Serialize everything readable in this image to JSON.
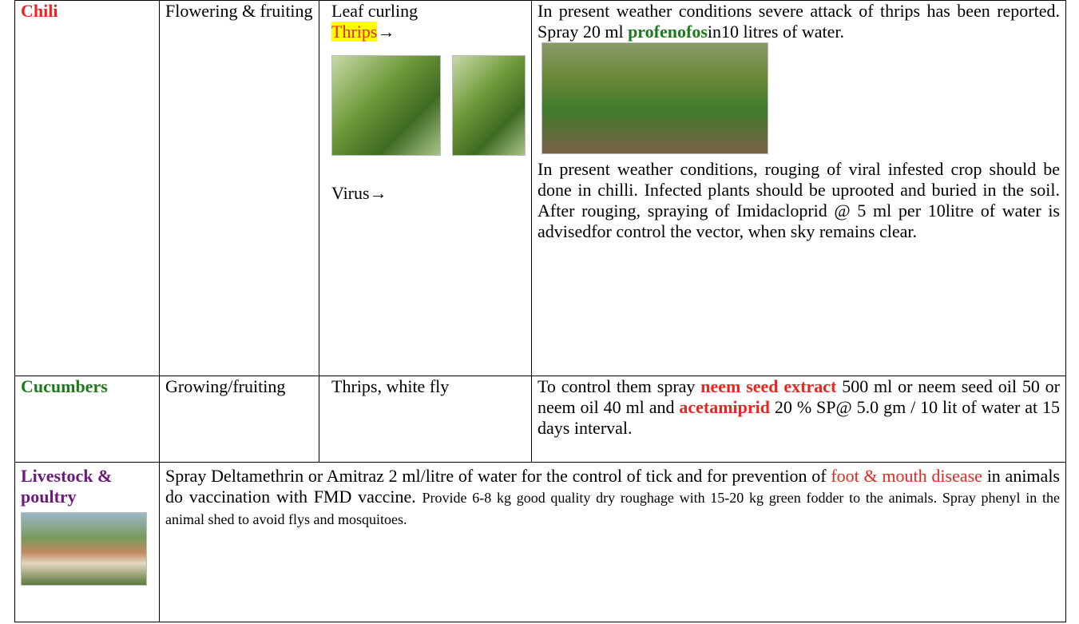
{
  "table": {
    "rows": [
      {
        "crop": "Chili",
        "stage": "Flowering & fruiting",
        "pest": "Leaf curling",
        "pest2": "Thrips",
        "arrow": "→",
        "pest3": "Virus→",
        "advice": [
          "In present weather conditions severe attack of thrips has been reported. Spray 20 ml ",
          "profenofos",
          "in10 litres of water.",
          "In present weather conditions, rouging of viral infested crop should be done in chilli. Infected plants should be uprooted and buried in the soil. After rouging, spraying of Imidacloprid @ 5 ml per 10litre of water is advisedfor control the vector, when sky remains clear."
        ]
      },
      {
        "crop": "Cucumbers",
        "stage": "Growing/fruiting",
        "pest": "Thrips, white fly",
        "advice": [
          "To control them spray ",
          "neem seed extract",
          " 500 ml or neem seed oil 50 or neem oil 40 ml and ",
          "acetamiprid",
          " 20 % SP@ 5.0 gm / 10 lit of water at 15 days interval."
        ]
      },
      {
        "crop": "Livestock & poultry",
        "advice": [
          "Spray Deltamethrin or Amitraz 2 ml/litre of water for the control of tick and for prevention of ",
          "foot & mouth disease",
          " in animals do vaccination with  FMD vaccine. ",
          "Provide 6-8 kg good quality dry roughage with 15-20 kg green fodder to the animals. Spray phenyl in the animal shed to avoid flys and mosquitoes."
        ]
      }
    ]
  }
}
